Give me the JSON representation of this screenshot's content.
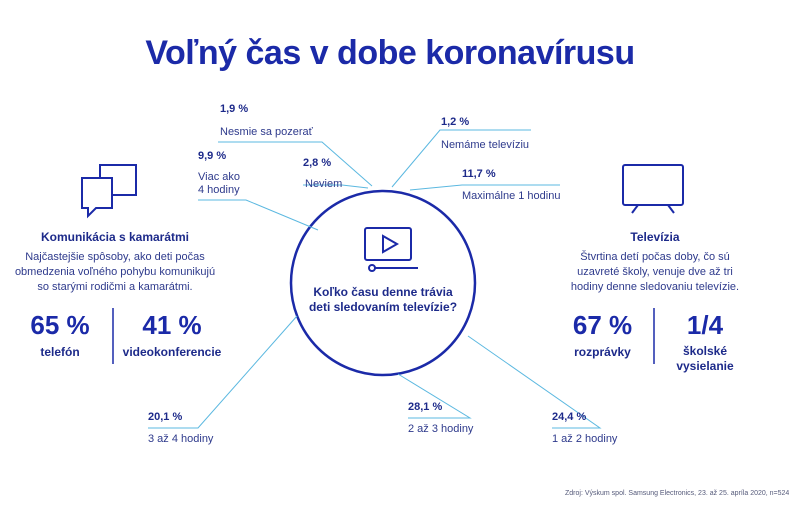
{
  "title": "Voľný čas v dobe koronavírusu",
  "circle": {
    "question": "Koľko času denne trávia deti sledovaním televízie?"
  },
  "segments": [
    {
      "pct": "1,9 %",
      "label": "Nesmie sa pozerať"
    },
    {
      "pct": "1,2 %",
      "label": "Nemáme televíziu"
    },
    {
      "pct": "9,9 %",
      "label_line1": "Viac ako",
      "label_line2": "4 hodiny"
    },
    {
      "pct": "2,8 %",
      "label": "Neviem"
    },
    {
      "pct": "11,7 %",
      "label": "Maximálne 1 hodinu"
    },
    {
      "pct": "20,1 %",
      "label": "3 až 4 hodiny"
    },
    {
      "pct": "28,1 %",
      "label": "2 až 3 hodiny"
    },
    {
      "pct": "24,4 %",
      "label": "1 až 2 hodiny"
    }
  ],
  "left": {
    "heading": "Komunikácia s kamarátmi",
    "desc_lines": [
      "Najčastejšie spôsoby, ako deti počas",
      "obmedzenia voľného pohybu komunikujú",
      "so starými rodičmi a kamarátmi."
    ],
    "stat1_value": "65 %",
    "stat1_label": "telefón",
    "stat2_value": "41 %",
    "stat2_label": "videokonferencie",
    "icon": "chat-bubbles-icon"
  },
  "right": {
    "heading": "Televízia",
    "desc_lines": [
      "Štvrtina detí počas doby, čo sú",
      "uzavreté školy, venuje dve až tri",
      "hodiny denne sledovaniu televízie."
    ],
    "stat1_value": "67 %",
    "stat1_label": "rozprávky",
    "stat2_value": "1/4",
    "stat2_label_line1": "školské",
    "stat2_label_line2": "vysielanie",
    "icon": "tv-icon"
  },
  "source": "Zdroj: Výskum spol. Samsung Electronics, 23. až 25. apríla 2020, n=524",
  "colors": {
    "primary": "#1b2aa8",
    "line": "#5bb8e0"
  }
}
